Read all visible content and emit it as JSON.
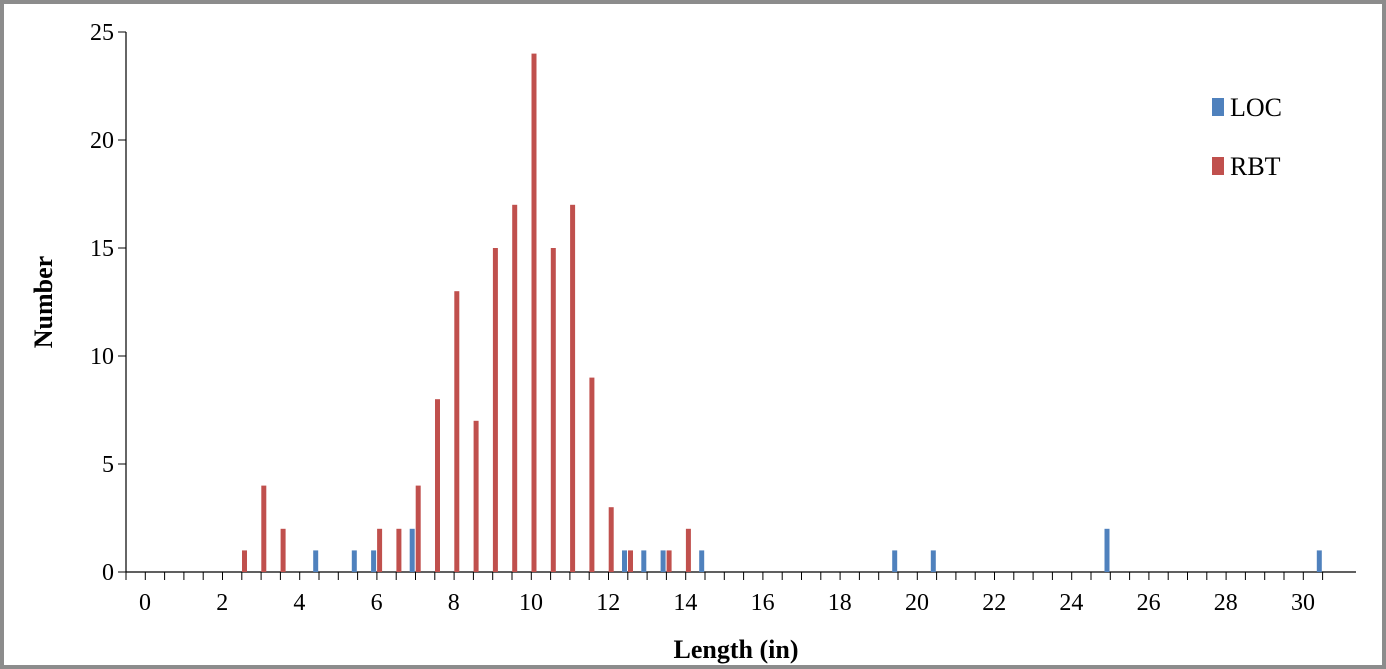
{
  "chart_data": {
    "type": "bar",
    "xlabel": "Length (in)",
    "ylabel": "Number",
    "xlim": [
      0,
      31
    ],
    "ylim": [
      0,
      25
    ],
    "x_ticks": [
      "0",
      "2",
      "4",
      "6",
      "8",
      "10",
      "12",
      "14",
      "16",
      "18",
      "20",
      "22",
      "24",
      "26",
      "28",
      "30"
    ],
    "y_ticks": [
      "0",
      "5",
      "10",
      "15",
      "20",
      "25"
    ],
    "legend_position": "top-right",
    "series": [
      {
        "name": "LOC",
        "color": "#4f81bd",
        "x": [
          4.5,
          5.5,
          6,
          7,
          12.5,
          13,
          13.5,
          14.5,
          19.5,
          20.5,
          25,
          30.5
        ],
        "values": [
          1,
          1,
          1,
          2,
          1,
          1,
          1,
          1,
          1,
          1,
          2,
          1
        ]
      },
      {
        "name": "RBT",
        "color": "#c0504d",
        "x": [
          2.5,
          3,
          3.5,
          6,
          6.5,
          7,
          7.5,
          8,
          8.5,
          9,
          9.5,
          10,
          10.5,
          11,
          11.5,
          12,
          12.5,
          13.5,
          14
        ],
        "values": [
          1,
          4,
          2,
          2,
          2,
          4,
          8,
          13,
          7,
          15,
          17,
          24,
          15,
          17,
          9,
          3,
          1,
          1,
          2
        ]
      }
    ]
  }
}
